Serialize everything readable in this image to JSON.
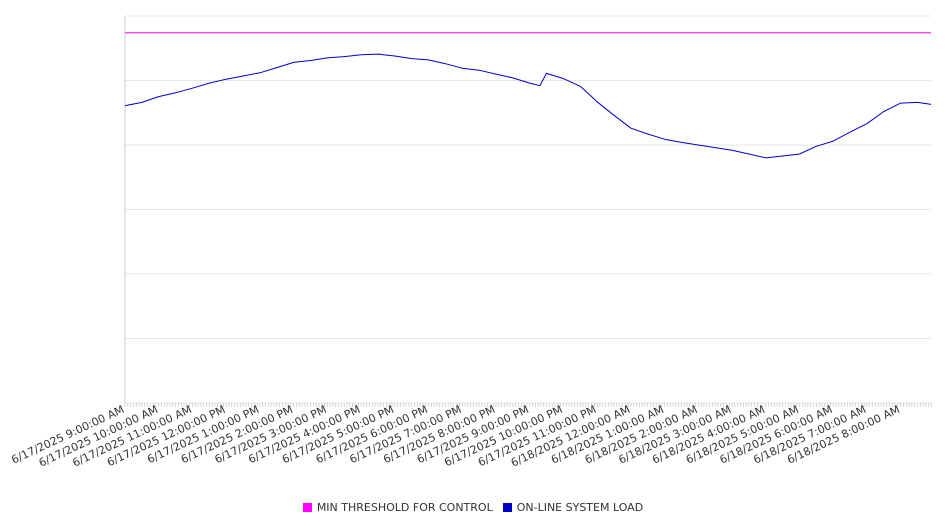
{
  "chart_data": {
    "type": "line",
    "title": "",
    "xlabel": "",
    "ylabel": "",
    "grid": true,
    "legend_position": "bottom-center",
    "y_tick_labels_visible": false,
    "x": [
      "6/17/2025 9:00:00 AM",
      "6/17/2025 10:00:00 AM",
      "6/17/2025 11:00:00 AM",
      "6/17/2025 12:00:00 PM",
      "6/17/2025 1:00:00 PM",
      "6/17/2025 2:00:00 PM",
      "6/17/2025 3:00:00 PM",
      "6/17/2025 4:00:00 PM",
      "6/17/2025 5:00:00 PM",
      "6/17/2025 6:00:00 PM",
      "6/17/2025 7:00:00 PM",
      "6/17/2025 8:00:00 PM",
      "6/17/2025 9:00:00 PM",
      "6/17/2025 10:00:00 PM",
      "6/17/2025 11:00:00 PM",
      "6/18/2025 12:00:00 AM",
      "6/18/2025 1:00:00 AM",
      "6/18/2025 2:00:00 AM",
      "6/18/2025 3:00:00 AM",
      "6/18/2025 4:00:00 AM",
      "6/18/2025 5:00:00 AM",
      "6/18/2025 6:00:00 AM",
      "6/18/2025 7:00:00 AM",
      "6/18/2025 8:00:00 AM"
    ],
    "ylim": [
      0,
      6
    ],
    "series": [
      {
        "name": "MIN THRESHOLD FOR CONTROL",
        "color": "#ff00ff",
        "points": [
          [
            0,
            5.74
          ],
          [
            23.9,
            5.74
          ]
        ]
      },
      {
        "name": "ON-LINE SYSTEM LOAD",
        "color": "#0000cc",
        "points": [
          [
            0,
            4.61
          ],
          [
            0.5,
            4.66
          ],
          [
            1,
            4.75
          ],
          [
            1.5,
            4.81
          ],
          [
            2,
            4.88
          ],
          [
            2.5,
            4.96
          ],
          [
            3,
            5.02
          ],
          [
            3.5,
            5.07
          ],
          [
            4,
            5.12
          ],
          [
            4.5,
            5.2
          ],
          [
            5,
            5.28
          ],
          [
            5.5,
            5.31
          ],
          [
            6,
            5.35
          ],
          [
            6.5,
            5.37
          ],
          [
            7,
            5.4
          ],
          [
            7.5,
            5.41
          ],
          [
            8,
            5.38
          ],
          [
            8.5,
            5.34
          ],
          [
            9,
            5.32
          ],
          [
            9.5,
            5.26
          ],
          [
            10,
            5.19
          ],
          [
            10.5,
            5.16
          ],
          [
            11,
            5.1
          ],
          [
            11.5,
            5.04
          ],
          [
            12,
            4.96
          ],
          [
            12.3,
            4.92
          ],
          [
            12.5,
            5.11
          ],
          [
            13,
            5.03
          ],
          [
            13.5,
            4.91
          ],
          [
            14,
            4.67
          ],
          [
            14.5,
            4.46
          ],
          [
            15,
            4.26
          ],
          [
            15.5,
            4.17
          ],
          [
            16,
            4.09
          ],
          [
            16.5,
            4.04
          ],
          [
            17,
            4.0
          ],
          [
            17.5,
            3.96
          ],
          [
            18,
            3.92
          ],
          [
            18.5,
            3.86
          ],
          [
            19,
            3.8
          ],
          [
            19.5,
            3.83
          ],
          [
            20,
            3.86
          ],
          [
            20.5,
            3.98
          ],
          [
            21,
            4.06
          ],
          [
            21.5,
            4.2
          ],
          [
            22,
            4.33
          ],
          [
            22.5,
            4.52
          ],
          [
            23,
            4.65
          ],
          [
            23.5,
            4.66
          ],
          [
            23.9,
            4.63
          ]
        ]
      }
    ]
  }
}
